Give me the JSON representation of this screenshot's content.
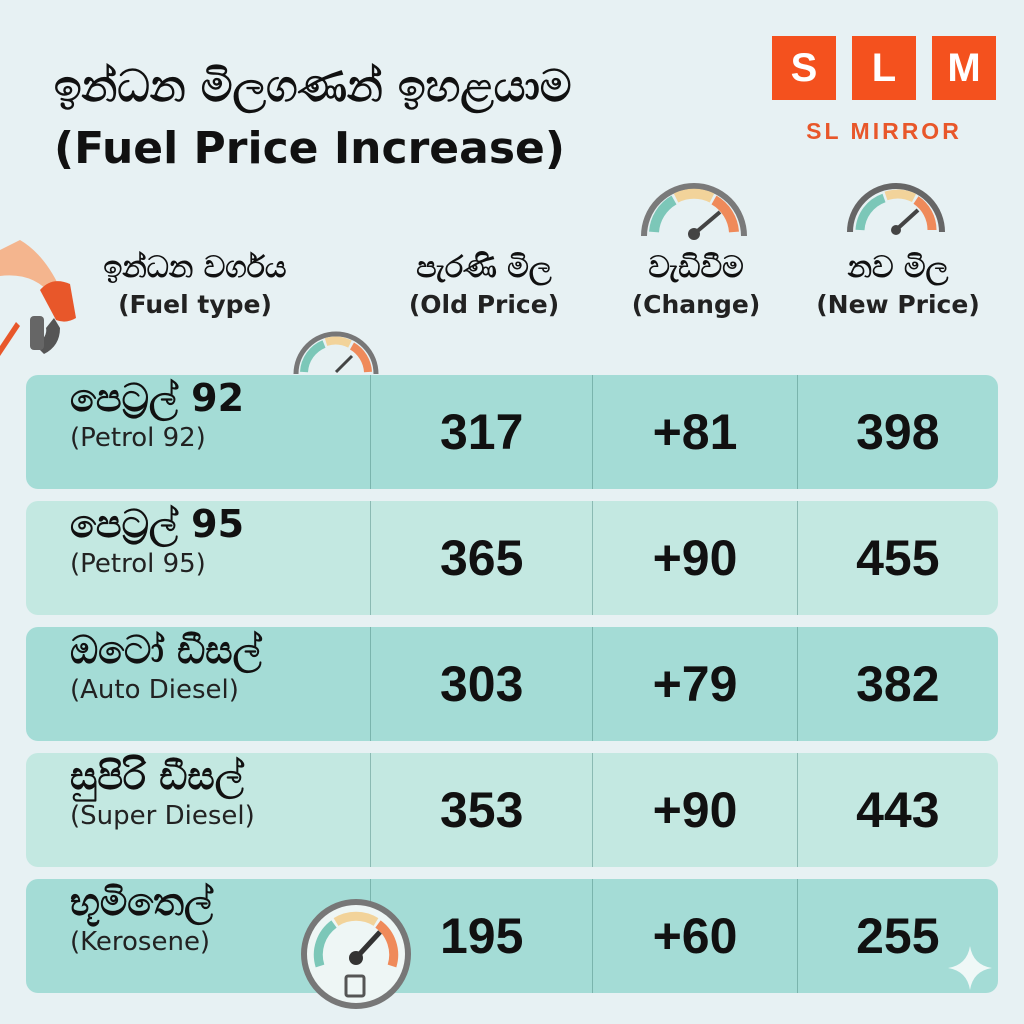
{
  "title": {
    "line1": "ඉන්ධන මිලගණන් ඉහළයාම",
    "line2": "(Fuel Price Increase)"
  },
  "logo": {
    "letters": [
      "S",
      "L",
      "M"
    ],
    "subtitle": "SL MIRROR",
    "color": "#f4511e"
  },
  "headers": {
    "type": {
      "si": "ඉන්ධන වර්ගය",
      "en": "(Fuel type)"
    },
    "old": {
      "si": "පැරණි මිල",
      "en": "(Old Price)"
    },
    "change": {
      "si": "වැඩිවීම",
      "en": "(Change)"
    },
    "new": {
      "si": "නව මිල",
      "en": "(New Price)"
    }
  },
  "rows": [
    {
      "si": "පෙට්‍රල් 92",
      "en": "(Petrol 92)",
      "old": "317",
      "change": "+81",
      "new": "398",
      "bg": "#a4dcd6"
    },
    {
      "si": "පෙට්‍රල් 95",
      "en": "(Petrol 95)",
      "old": "365",
      "change": "+90",
      "new": "455",
      "bg": "#c3e8e1"
    },
    {
      "si": "ඔටෝ ඩීසල්",
      "en": "(Auto Diesel)",
      "old": "303",
      "change": "+79",
      "new": "382",
      "bg": "#a4dcd6"
    },
    {
      "si": "සුපිරි ඩීසල්",
      "en": "(Super Diesel)",
      "old": "353",
      "change": "+90",
      "new": "443",
      "bg": "#c3e8e1"
    },
    {
      "si": "භූමිතෙල්",
      "en": "(Kerosene)",
      "old": "195",
      "change": "+60",
      "new": "255",
      "bg": "#a4dcd6"
    }
  ]
}
